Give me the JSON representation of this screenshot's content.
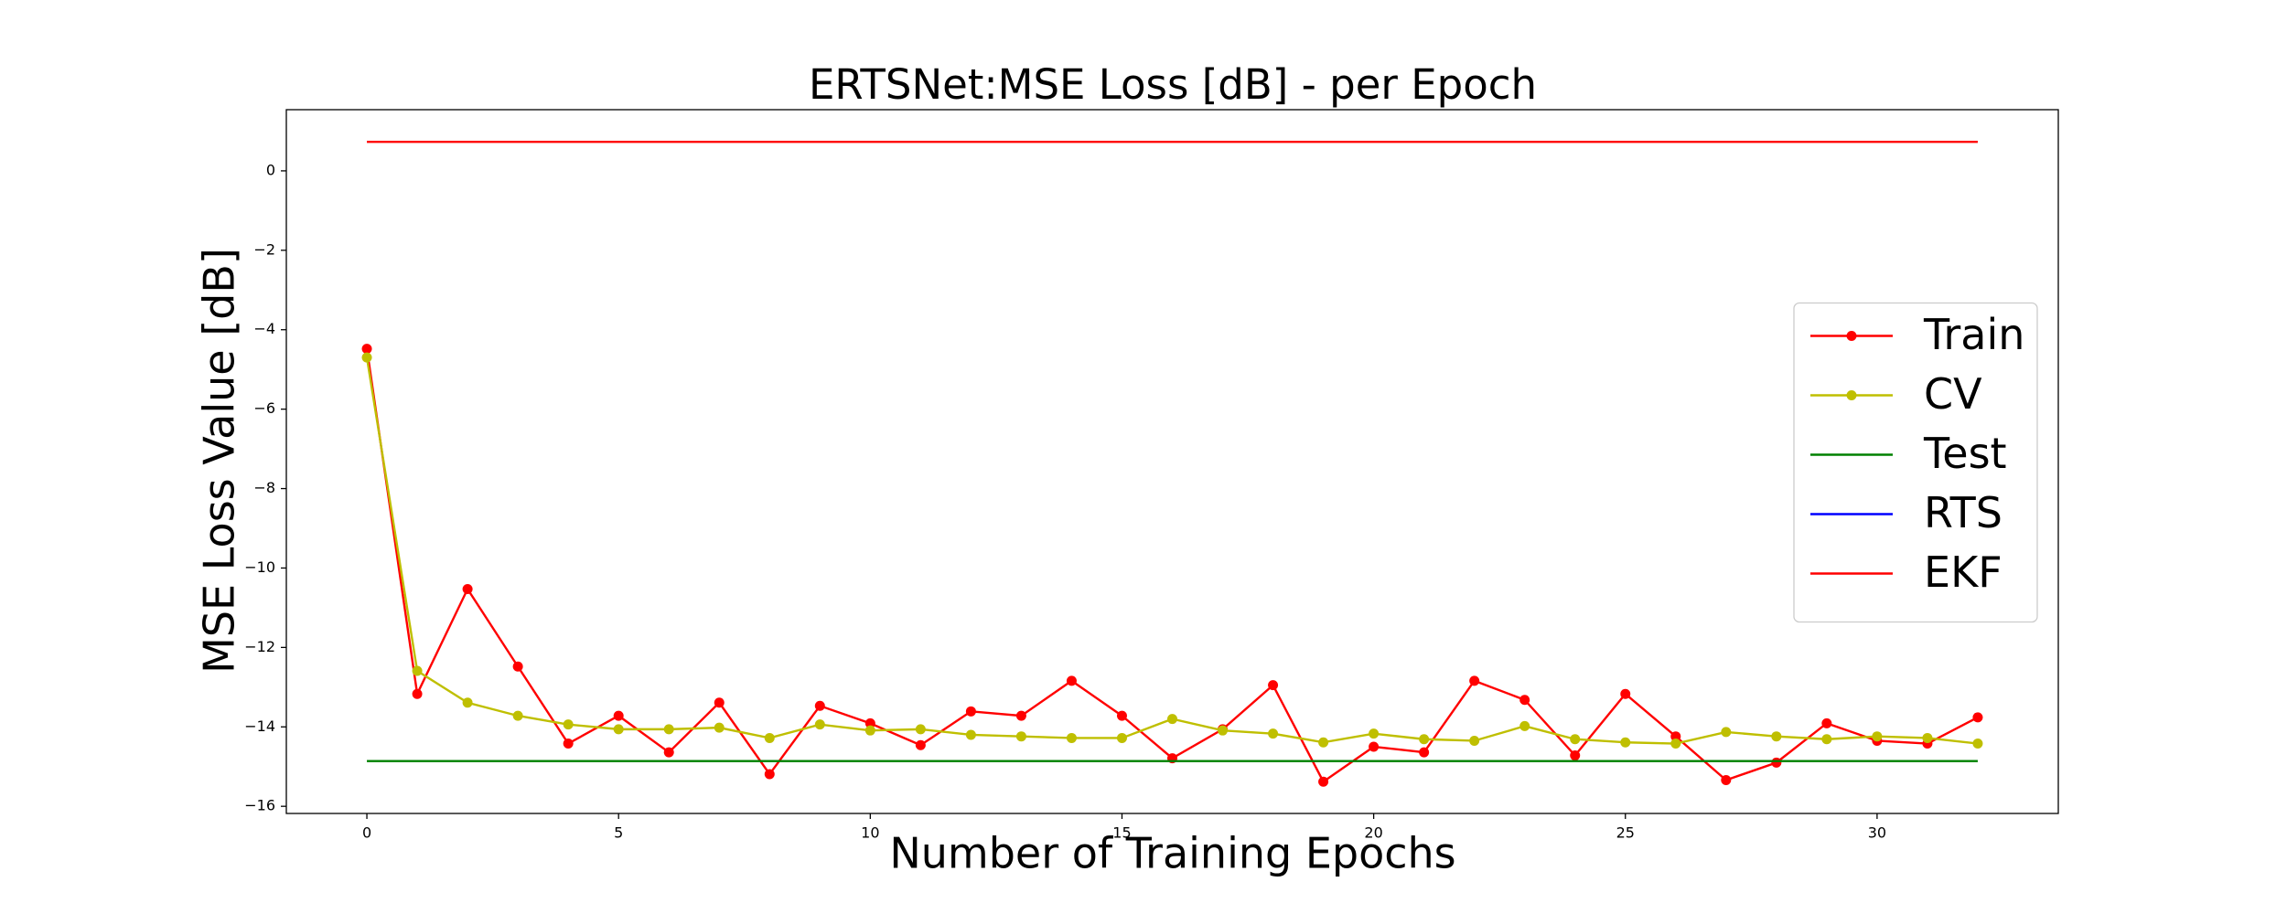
{
  "chart_data": {
    "type": "line",
    "title": "ERTSNet:MSE Loss [dB] - per Epoch",
    "xlabel": "Number of Training Epochs",
    "ylabel": "MSE Loss Value [dB]",
    "x": [
      0,
      1,
      2,
      3,
      4,
      5,
      6,
      7,
      8,
      9,
      10,
      11,
      12,
      13,
      14,
      15,
      16,
      17,
      18,
      19,
      20,
      21,
      22,
      23,
      24,
      25,
      26,
      27,
      28,
      29,
      30,
      31,
      32
    ],
    "series": [
      {
        "name": "Train",
        "color": "#ff0000",
        "marker": true,
        "values": [
          -4.48,
          -13.17,
          -10.53,
          -12.48,
          -14.42,
          -13.72,
          -14.64,
          -13.39,
          -15.19,
          -13.47,
          -13.91,
          -14.46,
          -13.61,
          -13.72,
          -12.84,
          -13.72,
          -14.79,
          -14.06,
          -12.95,
          -15.38,
          -14.5,
          -14.64,
          -12.84,
          -13.32,
          -14.72,
          -13.17,
          -14.24,
          -15.34,
          -14.9,
          -13.91,
          -14.35,
          -14.42,
          -13.76
        ]
      },
      {
        "name": "CV",
        "color": "#bfbf00",
        "marker": true,
        "values": [
          -4.7,
          -12.59,
          -13.39,
          -13.72,
          -13.94,
          -14.06,
          -14.06,
          -14.02,
          -14.28,
          -13.94,
          -14.09,
          -14.06,
          -14.2,
          -14.24,
          -14.28,
          -14.28,
          -13.8,
          -14.09,
          -14.17,
          -14.39,
          -14.17,
          -14.31,
          -14.35,
          -13.98,
          -14.31,
          -14.39,
          -14.42,
          -14.13,
          -14.24,
          -14.31,
          -14.24,
          -14.28,
          -14.42
        ]
      },
      {
        "name": "Test",
        "color": "#008000",
        "marker": false,
        "values": [
          -14.86,
          -14.86,
          -14.86,
          -14.86,
          -14.86,
          -14.86,
          -14.86,
          -14.86,
          -14.86,
          -14.86,
          -14.86,
          -14.86,
          -14.86,
          -14.86,
          -14.86,
          -14.86,
          -14.86,
          -14.86,
          -14.86,
          -14.86,
          -14.86,
          -14.86,
          -14.86,
          -14.86,
          -14.86,
          -14.86,
          -14.86,
          -14.86,
          -14.86,
          -14.86,
          -14.86,
          -14.86,
          -14.86
        ]
      },
      {
        "name": "RTS",
        "color": "#0000ff",
        "marker": false
      },
      {
        "name": "EKF",
        "color": "#ff0000",
        "marker": false,
        "values": [
          0.73,
          0.73,
          0.73,
          0.73,
          0.73,
          0.73,
          0.73,
          0.73,
          0.73,
          0.73,
          0.73,
          0.73,
          0.73,
          0.73,
          0.73,
          0.73,
          0.73,
          0.73,
          0.73,
          0.73,
          0.73,
          0.73,
          0.73,
          0.73,
          0.73,
          0.73,
          0.73,
          0.73,
          0.73,
          0.73,
          0.73,
          0.73,
          0.73
        ]
      }
    ],
    "xlim": [
      -1.6,
      33.6
    ],
    "ylim": [
      -16.18,
      1.54
    ],
    "xticks": [
      0,
      5,
      10,
      15,
      20,
      25,
      30
    ],
    "yticks": [
      {
        "value": -16,
        "label": "−16"
      },
      {
        "value": -14,
        "label": "−14"
      },
      {
        "value": -12,
        "label": "−12"
      },
      {
        "value": -10,
        "label": "−10"
      },
      {
        "value": -8,
        "label": "−8"
      },
      {
        "value": -6,
        "label": "−6"
      },
      {
        "value": -4,
        "label": "−4"
      },
      {
        "value": -2,
        "label": "−2"
      },
      0
    ],
    "legend": "center right"
  }
}
